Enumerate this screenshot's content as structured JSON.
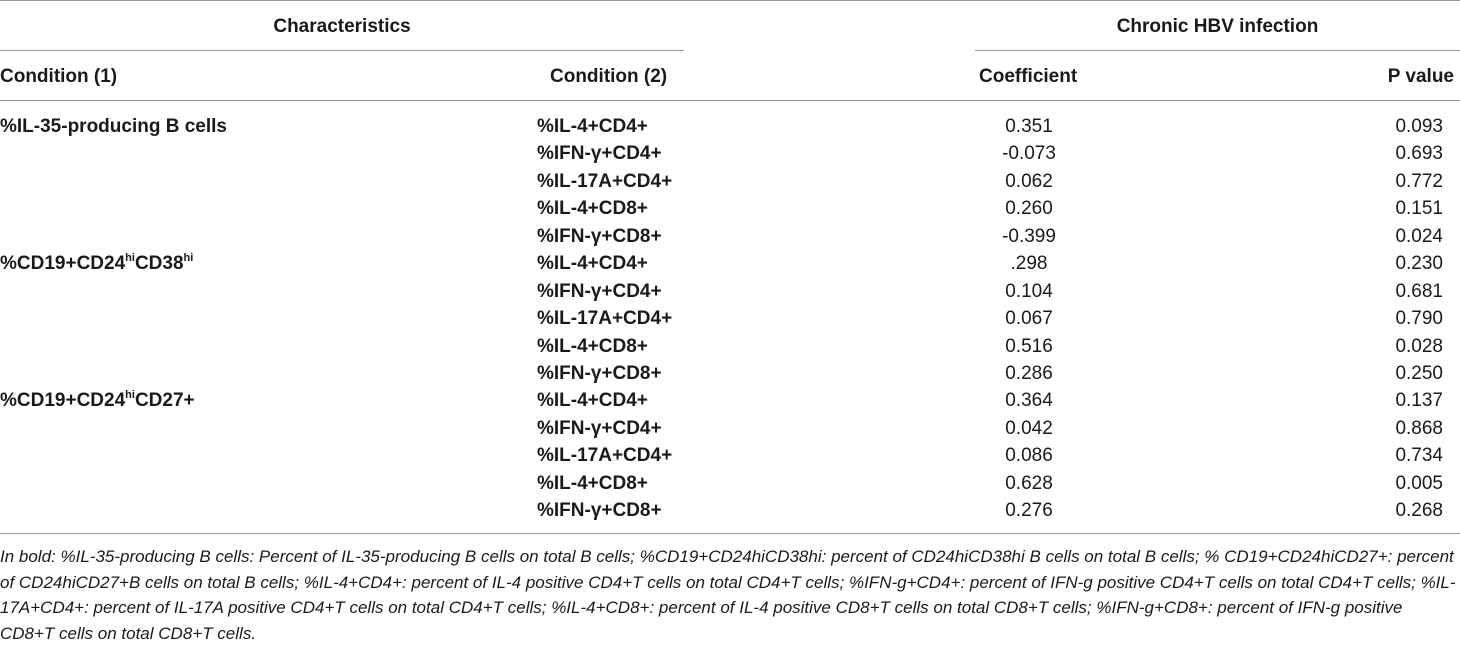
{
  "header": {
    "characteristics": "Characteristics",
    "chronic": "Chronic HBV infection",
    "condition1": "Condition (1)",
    "condition2": "Condition (2)",
    "coefficient": "Coefficient",
    "pvalue": "P value"
  },
  "groups": [
    {
      "label_parts": [
        "%IL-35-producing B cells"
      ]
    },
    {
      "label_parts": [
        "%CD19+CD24",
        "hi",
        "CD38",
        "hi"
      ]
    },
    {
      "label_parts": [
        "%CD19+CD24",
        "hi",
        "CD27+"
      ]
    }
  ],
  "rows": [
    {
      "condition2": "%IL-4+CD4+",
      "coefficient": "0.351",
      "pvalue": "0.093"
    },
    {
      "condition2": "%IFN-γ+CD4+",
      "coefficient": "-0.073",
      "pvalue": "0.693"
    },
    {
      "condition2": "%IL-17A+CD4+",
      "coefficient": "0.062",
      "pvalue": "0.772"
    },
    {
      "condition2": "%IL-4+CD8+",
      "coefficient": "0.260",
      "pvalue": "0.151"
    },
    {
      "condition2": "%IFN-γ+CD8+",
      "coefficient": "-0.399",
      "pvalue": "0.024"
    },
    {
      "condition2": "%IL-4+CD4+",
      "coefficient": ".298",
      "pvalue": "0.230"
    },
    {
      "condition2": "%IFN-γ+CD4+",
      "coefficient": "0.104",
      "pvalue": "0.681"
    },
    {
      "condition2": "%IL-17A+CD4+",
      "coefficient": "0.067",
      "pvalue": "0.790"
    },
    {
      "condition2": "%IL-4+CD8+",
      "coefficient": "0.516",
      "pvalue": "0.028"
    },
    {
      "condition2": "%IFN-γ+CD8+",
      "coefficient": "0.286",
      "pvalue": "0.250"
    },
    {
      "condition2": "%IL-4+CD4+",
      "coefficient": "0.364",
      "pvalue": "0.137"
    },
    {
      "condition2": "%IFN-γ+CD4+",
      "coefficient": "0.042",
      "pvalue": "0.868"
    },
    {
      "condition2": "%IL-17A+CD4+",
      "coefficient": "0.086",
      "pvalue": "0.734"
    },
    {
      "condition2": "%IL-4+CD8+",
      "coefficient": "0.628",
      "pvalue": "0.005"
    },
    {
      "condition2": "%IFN-γ+CD8+",
      "coefficient": "0.276",
      "pvalue": "0.268"
    }
  ],
  "footnote": "In bold: %IL-35-producing B cells: Percent of IL-35-producing B cells on total B cells; %CD19+CD24hiCD38hi: percent of CD24hiCD38hi B cells on total B cells; % CD19+CD24hiCD27+: percent of CD24hiCD27+B cells on total B cells; %IL-4+CD4+: percent of IL-4 positive CD4+T cells on total CD4+T cells; %IFN-g+CD4+: percent of IFN-g positive CD4+T cells on total CD4+T cells; %IL-17A+CD4+: percent of IL-17A positive CD4+T cells on total CD4+T cells; %IL-4+CD8+: percent of IL-4 positive CD8+T cells on total CD8+T cells; %IFN-g+CD8+: percent of IFN-g positive CD8+T cells on total CD8+T cells."
}
